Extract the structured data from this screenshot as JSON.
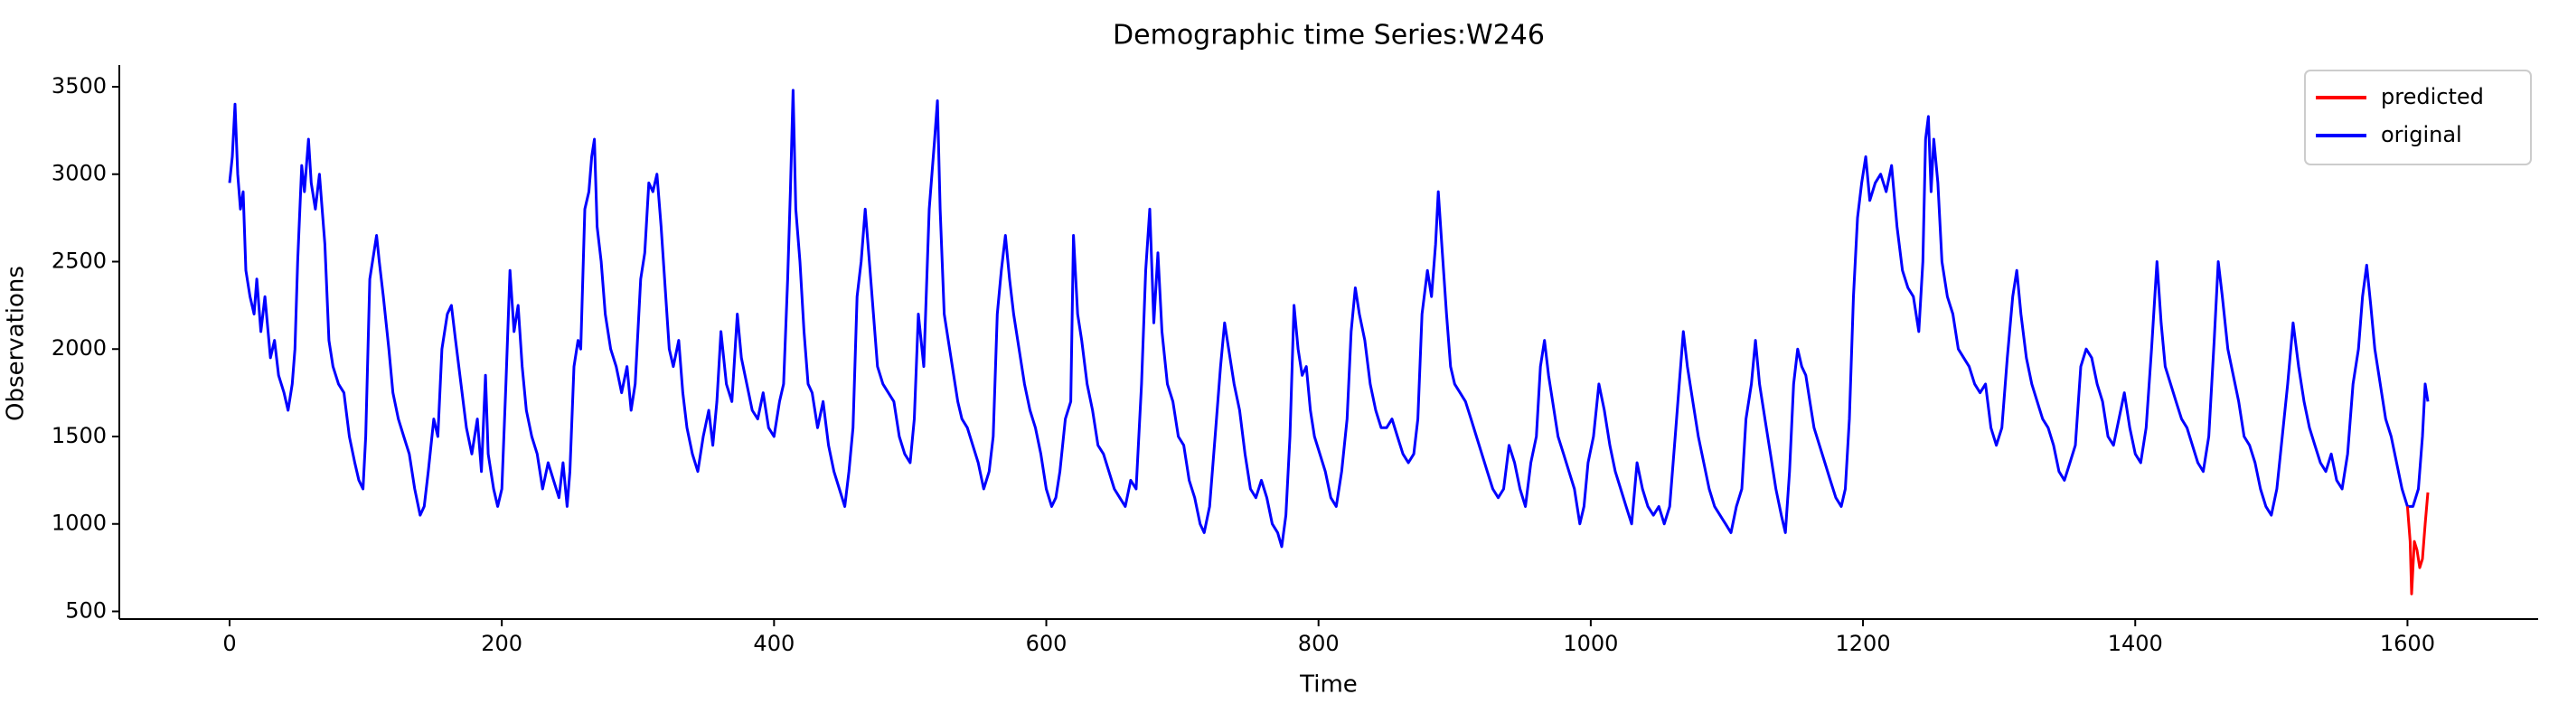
{
  "chart_data": {
    "type": "line",
    "title": "Demographic time Series:W246",
    "xlabel": "Time",
    "ylabel": "Observations",
    "xlim": [
      -81,
      1696
    ],
    "ylim": [
      456,
      3624
    ],
    "xticks": [
      0,
      200,
      400,
      600,
      800,
      1000,
      1200,
      1400,
      1600
    ],
    "yticks": [
      500,
      1000,
      1500,
      2000,
      2500,
      3000,
      3500
    ],
    "legend": "upper right",
    "series": [
      {
        "name": "predicted",
        "color": "#ff0000",
        "x": [
          1600,
          1602,
          1603,
          1605,
          1607,
          1609,
          1611,
          1613,
          1615
        ],
        "values": [
          1100,
          900,
          600,
          900,
          850,
          750,
          800,
          1000,
          1180
        ]
      },
      {
        "name": "original",
        "color": "#0000ff",
        "x": [
          0,
          2,
          4,
          6,
          8,
          10,
          12,
          15,
          18,
          20,
          23,
          26,
          30,
          33,
          36,
          40,
          43,
          46,
          48,
          50,
          53,
          55,
          58,
          60,
          63,
          66,
          70,
          73,
          76,
          80,
          84,
          88,
          92,
          95,
          98,
          100,
          103,
          106,
          108,
          110,
          113,
          117,
          120,
          124,
          128,
          132,
          136,
          140,
          143,
          146,
          150,
          153,
          156,
          160,
          163,
          166,
          170,
          174,
          178,
          182,
          185,
          188,
          190,
          194,
          197,
          200,
          203,
          206,
          209,
          212,
          215,
          218,
          222,
          226,
          230,
          234,
          238,
          242,
          245,
          248,
          250,
          253,
          256,
          258,
          261,
          264,
          266,
          268,
          270,
          273,
          276,
          280,
          284,
          288,
          292,
          295,
          298,
          302,
          305,
          308,
          311,
          314,
          317,
          320,
          323,
          326,
          330,
          333,
          336,
          340,
          344,
          348,
          352,
          355,
          358,
          361,
          365,
          369,
          373,
          376,
          380,
          384,
          388,
          392,
          396,
          400,
          404,
          407,
          410,
          412,
          414,
          416,
          419,
          422,
          425,
          428,
          432,
          436,
          440,
          444,
          448,
          452,
          455,
          458,
          461,
          464,
          467,
          470,
          473,
          476,
          480,
          484,
          488,
          492,
          496,
          500,
          503,
          506,
          510,
          514,
          518,
          520,
          522,
          525,
          528,
          531,
          535,
          538,
          542,
          546,
          550,
          554,
          558,
          561,
          564,
          567,
          570,
          573,
          576,
          580,
          584,
          588,
          592,
          596,
          600,
          604,
          607,
          610,
          614,
          618,
          620,
          623,
          626,
          630,
          634,
          638,
          642,
          646,
          650,
          654,
          658,
          662,
          666,
          670,
          673,
          676,
          679,
          682,
          685,
          689,
          693,
          697,
          701,
          705,
          709,
          713,
          716,
          720,
          724,
          728,
          731,
          734,
          738,
          742,
          746,
          750,
          754,
          758,
          762,
          766,
          770,
          773,
          776,
          779,
          782,
          785,
          788,
          791,
          794,
          797,
          801,
          805,
          809,
          813,
          817,
          821,
          824,
          827,
          830,
          834,
          838,
          842,
          846,
          850,
          854,
          858,
          862,
          866,
          870,
          873,
          876,
          880,
          883,
          886,
          888,
          891,
          894,
          897,
          900,
          904,
          908,
          912,
          916,
          920,
          924,
          928,
          932,
          936,
          940,
          944,
          948,
          952,
          956,
          960,
          963,
          966,
          969,
          972,
          976,
          980,
          984,
          988,
          992,
          995,
          998,
          1002,
          1006,
          1010,
          1014,
          1018,
          1022,
          1026,
          1030,
          1034,
          1038,
          1042,
          1046,
          1050,
          1054,
          1058,
          1062,
          1065,
          1068,
          1071,
          1075,
          1079,
          1083,
          1087,
          1091,
          1095,
          1099,
          1103,
          1107,
          1111,
          1114,
          1118,
          1121,
          1124,
          1128,
          1132,
          1136,
          1140,
          1143,
          1146,
          1149,
          1152,
          1155,
          1158,
          1161,
          1164,
          1168,
          1172,
          1176,
          1180,
          1184,
          1187,
          1190,
          1193,
          1196,
          1199,
          1202,
          1205,
          1209,
          1213,
          1217,
          1221,
          1225,
          1229,
          1233,
          1237,
          1241,
          1244,
          1246,
          1248,
          1250,
          1252,
          1255,
          1258,
          1262,
          1266,
          1270,
          1274,
          1278,
          1282,
          1286,
          1290,
          1294,
          1298,
          1302,
          1306,
          1310,
          1313,
          1316,
          1320,
          1324,
          1328,
          1332,
          1336,
          1340,
          1344,
          1348,
          1352,
          1356,
          1360,
          1364,
          1368,
          1372,
          1376,
          1380,
          1384,
          1388,
          1392,
          1396,
          1400,
          1404,
          1408,
          1412,
          1416,
          1419,
          1422,
          1426,
          1430,
          1434,
          1438,
          1442,
          1446,
          1450,
          1454,
          1458,
          1461,
          1464,
          1468,
          1472,
          1476,
          1480,
          1484,
          1488,
          1492,
          1496,
          1500,
          1504,
          1508,
          1512,
          1516,
          1520,
          1524,
          1528,
          1532,
          1536,
          1540,
          1544,
          1548,
          1552,
          1556,
          1560,
          1564,
          1567,
          1570,
          1573,
          1576,
          1580,
          1584,
          1588,
          1592,
          1596,
          1600,
          1604,
          1608,
          1611,
          1613,
          1615
        ],
        "values": [
          2950,
          3100,
          3400,
          3000,
          2800,
          2900,
          2450,
          2300,
          2200,
          2400,
          2100,
          2300,
          1950,
          2050,
          1850,
          1750,
          1650,
          1800,
          2000,
          2500,
          3050,
          2900,
          3200,
          2950,
          2800,
          3000,
          2600,
          2050,
          1900,
          1800,
          1750,
          1500,
          1350,
          1250,
          1200,
          1500,
          2400,
          2550,
          2650,
          2500,
          2300,
          2000,
          1750,
          1600,
          1500,
          1400,
          1200,
          1050,
          1100,
          1300,
          1600,
          1500,
          2000,
          2200,
          2250,
          2050,
          1800,
          1550,
          1400,
          1600,
          1300,
          1850,
          1400,
          1200,
          1100,
          1200,
          1800,
          2450,
          2100,
          2250,
          1900,
          1650,
          1500,
          1400,
          1200,
          1350,
          1250,
          1150,
          1350,
          1100,
          1300,
          1900,
          2050,
          2000,
          2800,
          2900,
          3100,
          3200,
          2700,
          2500,
          2200,
          2000,
          1900,
          1750,
          1900,
          1650,
          1800,
          2400,
          2550,
          2950,
          2900,
          3000,
          2700,
          2350,
          2000,
          1900,
          2050,
          1750,
          1550,
          1400,
          1300,
          1500,
          1650,
          1450,
          1700,
          2100,
          1800,
          1700,
          2200,
          1950,
          1800,
          1650,
          1600,
          1750,
          1550,
          1500,
          1700,
          1800,
          2400,
          2900,
          3480,
          2800,
          2500,
          2100,
          1800,
          1750,
          1550,
          1700,
          1450,
          1300,
          1200,
          1100,
          1300,
          1550,
          2300,
          2500,
          2800,
          2500,
          2200,
          1900,
          1800,
          1750,
          1700,
          1500,
          1400,
          1350,
          1600,
          2200,
          1900,
          2800,
          3200,
          3420,
          2800,
          2200,
          2050,
          1900,
          1700,
          1600,
          1550,
          1450,
          1350,
          1200,
          1300,
          1500,
          2200,
          2450,
          2650,
          2400,
          2200,
          2000,
          1800,
          1650,
          1550,
          1400,
          1200,
          1100,
          1150,
          1300,
          1600,
          1700,
          2650,
          2200,
          2050,
          1800,
          1650,
          1450,
          1400,
          1300,
          1200,
          1150,
          1100,
          1250,
          1200,
          1800,
          2450,
          2800,
          2150,
          2550,
          2100,
          1800,
          1700,
          1500,
          1450,
          1250,
          1150,
          1000,
          950,
          1100,
          1500,
          1900,
          2150,
          2000,
          1800,
          1650,
          1400,
          1200,
          1150,
          1250,
          1150,
          1000,
          950,
          870,
          1050,
          1500,
          2250,
          2000,
          1850,
          1900,
          1650,
          1500,
          1400,
          1300,
          1150,
          1100,
          1300,
          1600,
          2100,
          2350,
          2200,
          2050,
          1800,
          1650,
          1550,
          1550,
          1600,
          1500,
          1400,
          1350,
          1400,
          1600,
          2200,
          2450,
          2300,
          2600,
          2900,
          2550,
          2200,
          1900,
          1800,
          1750,
          1700,
          1600,
          1500,
          1400,
          1300,
          1200,
          1150,
          1200,
          1450,
          1350,
          1200,
          1100,
          1350,
          1500,
          1900,
          2050,
          1850,
          1700,
          1500,
          1400,
          1300,
          1200,
          1000,
          1100,
          1350,
          1500,
          1800,
          1650,
          1450,
          1300,
          1200,
          1100,
          1000,
          1350,
          1200,
          1100,
          1050,
          1100,
          1000,
          1100,
          1500,
          1800,
          2100,
          1900,
          1700,
          1500,
          1350,
          1200,
          1100,
          1050,
          1000,
          950,
          1100,
          1200,
          1600,
          1800,
          2050,
          1800,
          1600,
          1400,
          1200,
          1050,
          950,
          1300,
          1800,
          2000,
          1900,
          1850,
          1700,
          1550,
          1450,
          1350,
          1250,
          1150,
          1100,
          1200,
          1600,
          2300,
          2750,
          2950,
          3100,
          2850,
          2950,
          3000,
          2900,
          3050,
          2700,
          2450,
          2350,
          2300,
          2100,
          2500,
          3200,
          3330,
          2900,
          3200,
          2950,
          2500,
          2300,
          2200,
          2000,
          1950,
          1900,
          1800,
          1750,
          1800,
          1550,
          1450,
          1550,
          1950,
          2300,
          2450,
          2200,
          1950,
          1800,
          1700,
          1600,
          1550,
          1450,
          1300,
          1250,
          1350,
          1450,
          1900,
          2000,
          1950,
          1800,
          1700,
          1500,
          1450,
          1600,
          1750,
          1550,
          1400,
          1350,
          1550,
          2000,
          2500,
          2150,
          1900,
          1800,
          1700,
          1600,
          1550,
          1450,
          1350,
          1300,
          1500,
          2050,
          2500,
          2300,
          2000,
          1850,
          1700,
          1500,
          1450,
          1350,
          1200,
          1100,
          1050,
          1200,
          1500,
          1800,
          2150,
          1900,
          1700,
          1550,
          1450,
          1350,
          1300,
          1400,
          1250,
          1200,
          1400,
          1800,
          2000,
          2300,
          2480,
          2250,
          2000,
          1800,
          1600,
          1500,
          1350,
          1200,
          1100,
          1100,
          1200,
          1500,
          1800,
          1700
        ]
      }
    ]
  }
}
